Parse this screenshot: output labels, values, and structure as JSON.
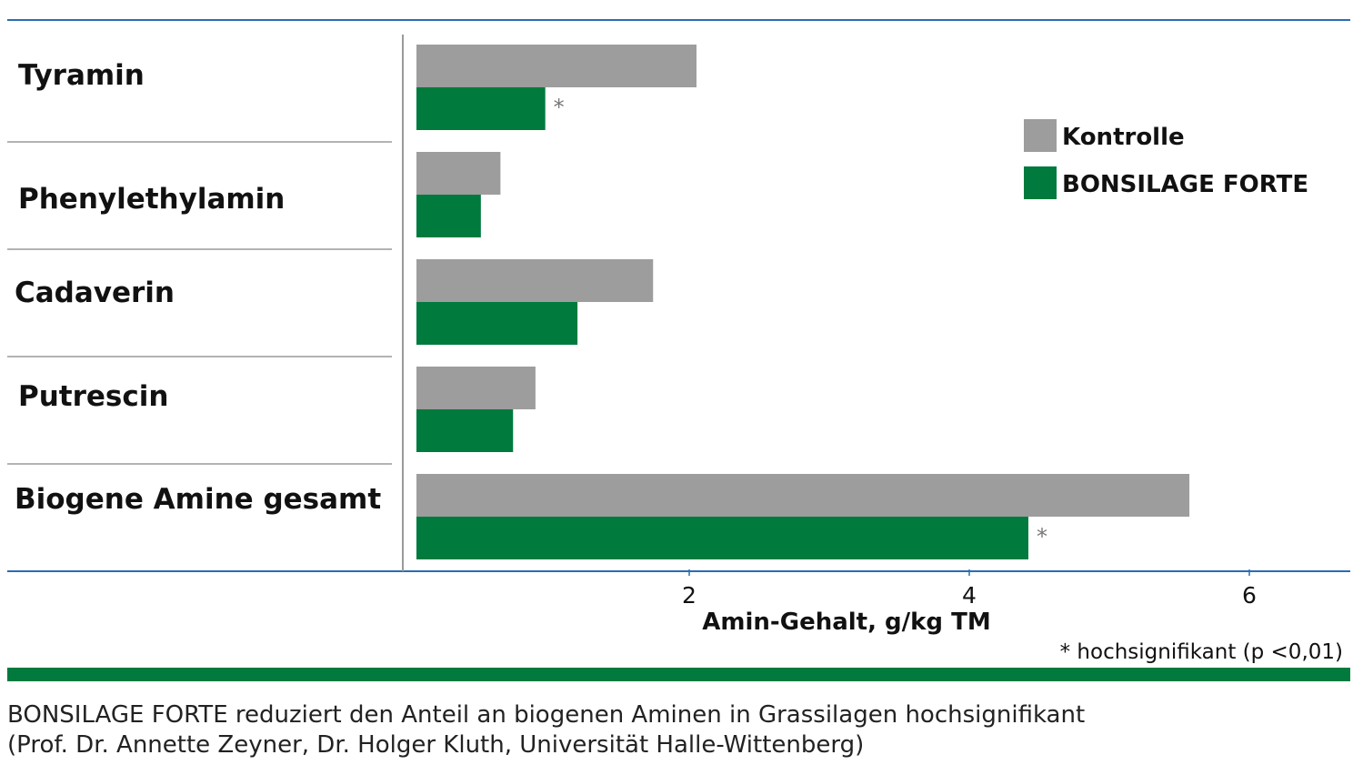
{
  "chart_data": {
    "type": "bar",
    "orientation": "horizontal",
    "categories": [
      "Tyramin",
      "Phenylethylamin",
      "Cadaverin",
      "Putrescin",
      "Biogene Amine gesamt"
    ],
    "series": [
      {
        "name": "Kontrolle",
        "color": "#9d9d9d",
        "values": [
          2.0,
          0.6,
          1.69,
          0.85,
          5.52
        ]
      },
      {
        "name": "BONSILAGE FORTE",
        "color": "#007a3d",
        "values": [
          0.92,
          0.46,
          1.15,
          0.69,
          4.37
        ]
      }
    ],
    "x_ticks": [
      2,
      4,
      6
    ],
    "xlim": [
      0,
      6.6
    ],
    "xlabel": "Amin-Gehalt, g/kg TM",
    "legend_position": "top-right",
    "significance_marks": [
      {
        "category": "Tyramin",
        "series": "BONSILAGE FORTE",
        "mark": "*"
      },
      {
        "category": "Biogene Amine gesamt",
        "series": "BONSILAGE FORTE",
        "mark": "*"
      }
    ],
    "footnote": "* hochsignifikant (p <0,01)",
    "grid": false
  },
  "caption": {
    "line1": "BONSILAGE FORTE reduziert den Anteil an biogenen Aminen in Grassilagen hochsignifikant",
    "line2": "(Prof. Dr. Annette Zeyner, Dr. Holger Kluth, Universität Halle-Wittenberg)"
  },
  "colors": {
    "rule_blue": "#2a6db3",
    "bottom_band_green": "#007a3d",
    "separator_gray": "#9a9a9a"
  }
}
